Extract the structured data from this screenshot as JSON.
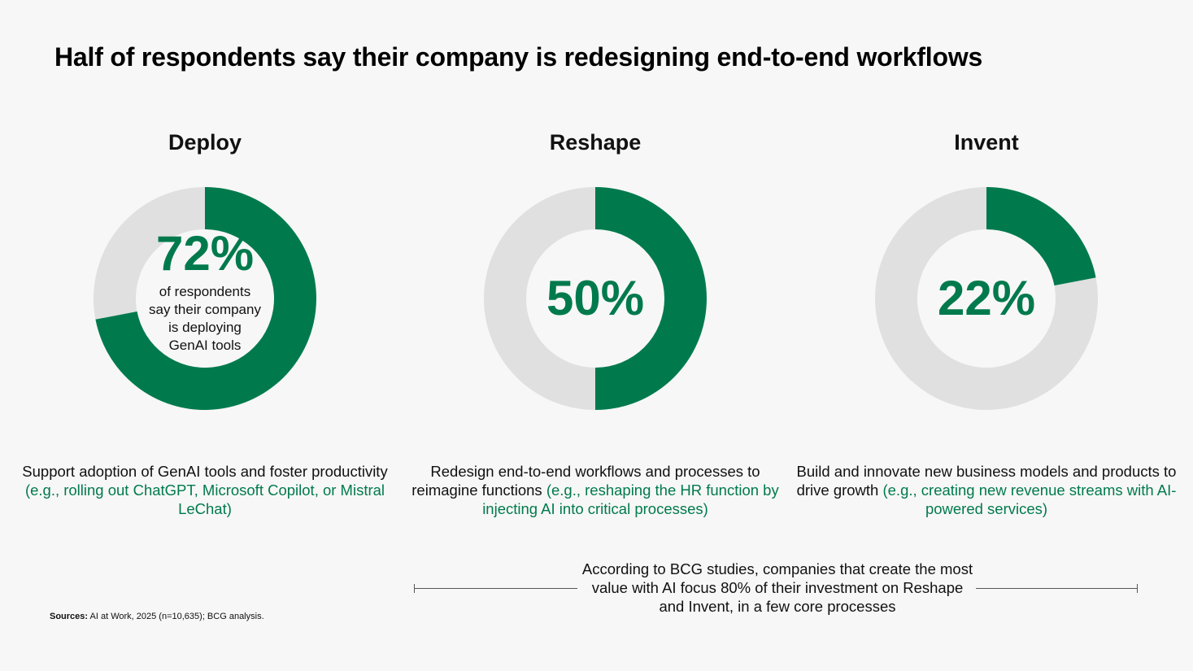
{
  "title": "Half of respondents say their company is redesigning end-to-end workflows",
  "colors": {
    "accent": "#007a4d",
    "track": "#e0e0e0",
    "background": "#f7f7f7"
  },
  "chart_data": [
    {
      "type": "pie",
      "title": "Deploy",
      "values": [
        72,
        28
      ],
      "label": "72%",
      "note": "of respondents say their company is deploying GenAI tools"
    },
    {
      "type": "pie",
      "title": "Reshape",
      "values": [
        50,
        50
      ],
      "label": "50%"
    },
    {
      "type": "pie",
      "title": "Invent",
      "values": [
        22,
        78
      ],
      "label": "22%"
    }
  ],
  "descriptions": [
    {
      "text": "Support adoption of GenAI tools and foster productivity ",
      "example": "(e.g., rolling out ChatGPT, Microsoft Copilot, or Mistral LeChat)"
    },
    {
      "text": "Redesign end-to-end workflows and processes to reimagine functions ",
      "example": "(e.g., reshaping the HR function by injecting AI into critical processes)"
    },
    {
      "text": "Build and innovate new business models and products to drive growth ",
      "example": "(e.g., creating new revenue streams with AI-powered services)"
    }
  ],
  "note": "According to BCG studies, companies that create the most value with AI focus 80% of their investment on Reshape and Invent, in a few core processes",
  "source": {
    "label": "Sources:",
    "text": " AI at Work, 2025 (n=10,635); BCG analysis."
  }
}
